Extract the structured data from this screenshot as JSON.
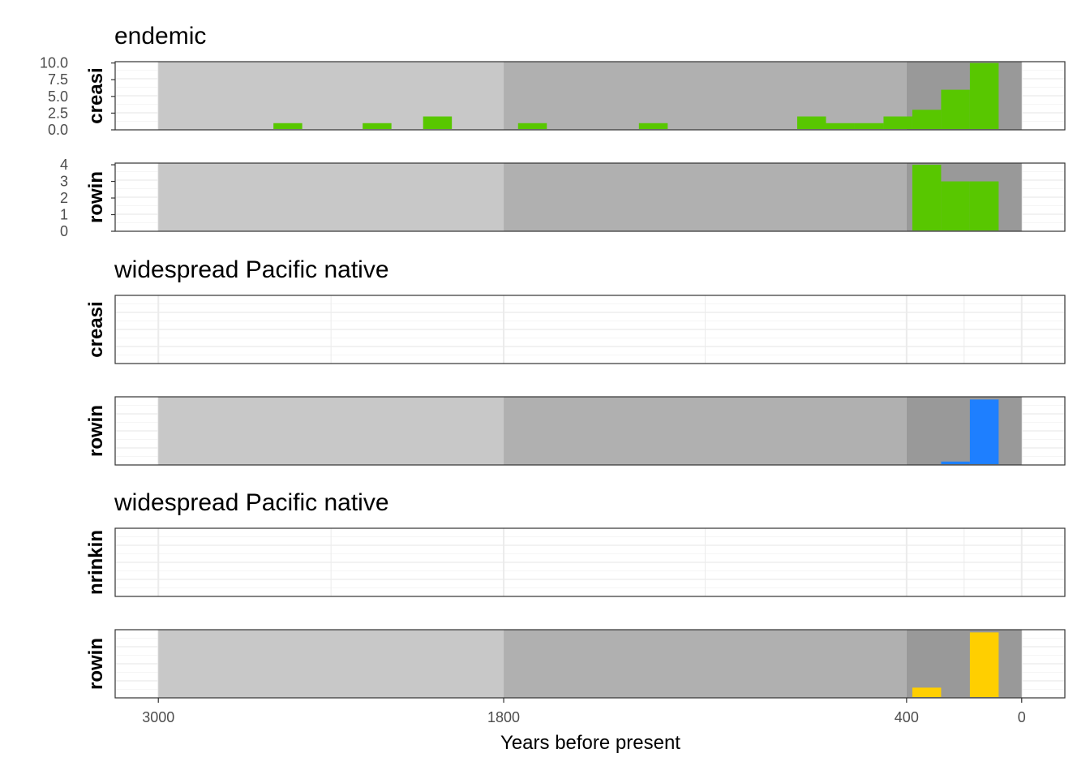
{
  "chart_data": {
    "type": "bar",
    "xlabel": "Years before present",
    "x_ticks": [
      {
        "value": 3000,
        "label": "3000"
      },
      {
        "value": 1800,
        "label": "1800"
      },
      {
        "value": 400,
        "label": "400"
      },
      {
        "value": 0,
        "label": "0"
      }
    ],
    "xlim": [
      3150,
      -150
    ],
    "background_bands": [
      {
        "from": 3000,
        "to": 1800,
        "color": "#c8c8c8"
      },
      {
        "from": 1800,
        "to": 400,
        "color": "#b0b0b0"
      },
      {
        "from": 400,
        "to": 0,
        "color": "#999999"
      }
    ],
    "bin_width": 100,
    "grid": true,
    "groups": [
      {
        "title": "endemic",
        "panels": [
          {
            "strip": "creasi",
            "bands": true,
            "color": "#58c700",
            "y_ticks": [
              {
                "value": 0,
                "label": "0.0"
              },
              {
                "value": 2.5,
                "label": "2.5"
              },
              {
                "value": 5,
                "label": "5.0"
              },
              {
                "value": 7.5,
                "label": "7.5"
              },
              {
                "value": 10,
                "label": "10.0"
              }
            ],
            "ylim": [
              0,
              10.2
            ],
            "bins": [
              {
                "x_start": 2600,
                "x_end": 2500,
                "count": 1
              },
              {
                "x_start": 2290,
                "x_end": 2190,
                "count": 1
              },
              {
                "x_start": 2080,
                "x_end": 1980,
                "count": 2
              },
              {
                "x_start": 1750,
                "x_end": 1650,
                "count": 1
              },
              {
                "x_start": 1330,
                "x_end": 1230,
                "count": 1
              },
              {
                "x_start": 780,
                "x_end": 680,
                "count": 2
              },
              {
                "x_start": 680,
                "x_end": 580,
                "count": 1
              },
              {
                "x_start": 580,
                "x_end": 480,
                "count": 1
              },
              {
                "x_start": 480,
                "x_end": 380,
                "count": 2
              },
              {
                "x_start": 380,
                "x_end": 280,
                "count": 3
              },
              {
                "x_start": 280,
                "x_end": 180,
                "count": 6
              },
              {
                "x_start": 180,
                "x_end": 80,
                "count": 10
              }
            ]
          },
          {
            "strip": "rowin",
            "bands": true,
            "color": "#58c700",
            "y_ticks": [
              {
                "value": 0,
                "label": "0"
              },
              {
                "value": 1,
                "label": "1"
              },
              {
                "value": 2,
                "label": "2"
              },
              {
                "value": 3,
                "label": "3"
              },
              {
                "value": 4,
                "label": "4"
              }
            ],
            "ylim": [
              0,
              4.1
            ],
            "bins": [
              {
                "x_start": 380,
                "x_end": 280,
                "count": 4
              },
              {
                "x_start": 280,
                "x_end": 180,
                "count": 3
              },
              {
                "x_start": 180,
                "x_end": 80,
                "count": 3
              }
            ]
          }
        ]
      },
      {
        "title": "widespread Pacific native",
        "panels": [
          {
            "strip": "creasi",
            "bands": false,
            "color": "#1e7fff",
            "y_ticks": [],
            "ylim": [
              0,
              10
            ],
            "bins": []
          },
          {
            "strip": "rowin",
            "bands": true,
            "color": "#1e7fff",
            "y_ticks": [],
            "ylim": [
              0,
              10
            ],
            "bins": [
              {
                "x_start": 280,
                "x_end": 180,
                "count": 0.5
              },
              {
                "x_start": 180,
                "x_end": 80,
                "count": 9.6
              }
            ]
          }
        ]
      },
      {
        "title": "widespread Pacific native",
        "panels": [
          {
            "strip": "nrinkin",
            "bands": false,
            "color": "#ffcf00",
            "y_ticks": [],
            "ylim": [
              0,
              10
            ],
            "bins": []
          },
          {
            "strip": "rowin",
            "bands": true,
            "color": "#ffcf00",
            "y_ticks": [],
            "ylim": [
              0,
              10
            ],
            "bins": [
              {
                "x_start": 380,
                "x_end": 280,
                "count": 1.5
              },
              {
                "x_start": 180,
                "x_end": 80,
                "count": 9.6
              }
            ]
          }
        ]
      }
    ]
  }
}
